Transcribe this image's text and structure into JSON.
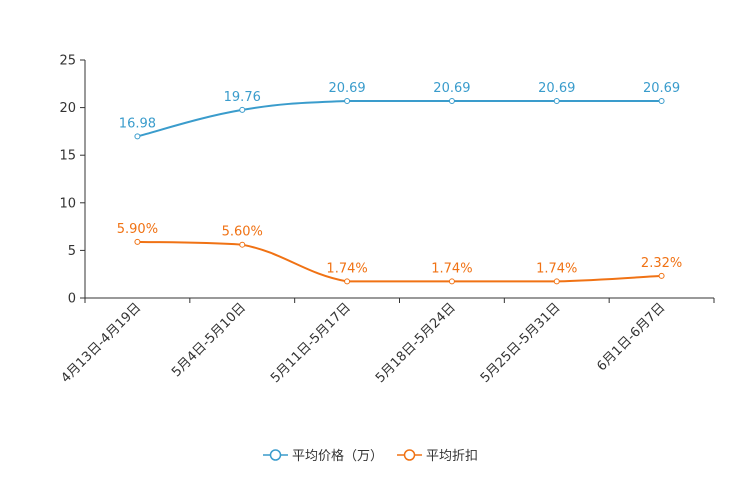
{
  "chart_data": {
    "type": "line",
    "title": "",
    "xlabel": "",
    "ylabel": "",
    "ylim": [
      0,
      25
    ],
    "yticks": [
      "0",
      "5",
      "10",
      "15",
      "20",
      "25"
    ],
    "categories": [
      "4月13日-4月19日",
      "5月4日-5月10日",
      "5月11日-5月17日",
      "5月18日-5月24日",
      "5月25日-5月31日",
      "6月1日-6月7日"
    ],
    "series": [
      {
        "name": "平均价格（万）",
        "color": "#3a9ccc",
        "values": [
          16.98,
          19.76,
          20.69,
          20.69,
          20.69,
          20.69
        ],
        "labels": [
          "16.98",
          "19.76",
          "20.69",
          "20.69",
          "20.69",
          "20.69"
        ]
      },
      {
        "name": "平均折扣",
        "color": "#f07214",
        "values": [
          5.9,
          5.6,
          1.74,
          1.74,
          1.74,
          2.32
        ],
        "labels": [
          "5.90%",
          "5.60%",
          "1.74%",
          "1.74%",
          "1.74%",
          "2.32%"
        ]
      }
    ],
    "legend_position": "bottom-center"
  }
}
